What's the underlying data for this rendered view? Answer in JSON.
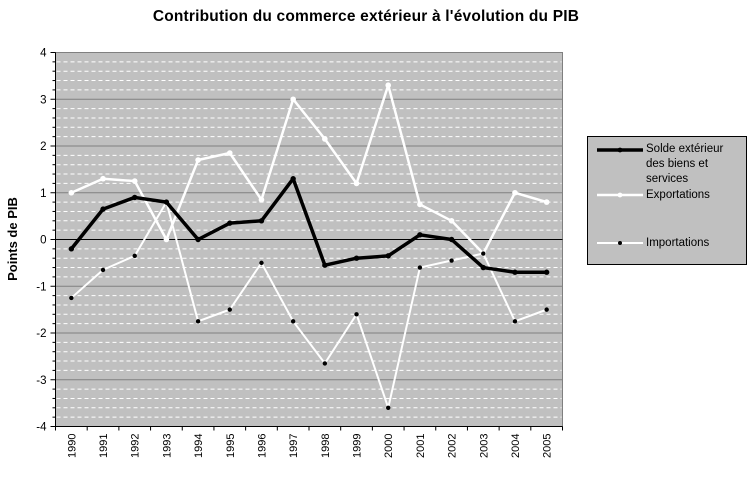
{
  "title": "Contribution du commerce extérieur à l'évolution du PIB",
  "y_axis": {
    "label": "Points de PIB",
    "tick_labels": [
      "4",
      "3",
      "2",
      "1",
      "0",
      "-1",
      "-2",
      "-3",
      "-4"
    ]
  },
  "colors": {
    "background": "#ffffff",
    "plot_background": "#c0c0c0",
    "major_gridline": "#808080",
    "minor_gridline": "#ffffff",
    "axis": "#000000",
    "text": "#000000",
    "legend_background": "#c0c0c0",
    "legend_border": "#000000"
  },
  "chart_data": {
    "type": "line",
    "title": "Contribution du commerce extérieur à l'évolution du PIB",
    "xlabel": "",
    "ylabel": "Points de PIB",
    "ylim": [
      -4,
      4
    ],
    "y_major_step": 1,
    "y_minor_step": 0.2,
    "grid": "major horizontal solid gray, minor horizontal dashed white",
    "legend_position": "right",
    "categories": [
      "1990",
      "1991",
      "1992",
      "1993",
      "1994",
      "1995",
      "1996",
      "1997",
      "1998",
      "1999",
      "2000",
      "2001",
      "2002",
      "2003",
      "2004",
      "2005"
    ],
    "series": [
      {
        "name": "Solde extérieur des biens et services",
        "color": "#000000",
        "marker_color": "#000000",
        "values": [
          -0.2,
          0.65,
          0.9,
          0.8,
          0.0,
          0.35,
          0.4,
          1.3,
          -0.55,
          -0.4,
          -0.35,
          0.1,
          0.0,
          -0.6,
          -0.7,
          -0.7
        ]
      },
      {
        "name": "Exportations",
        "color": "#ffffff",
        "marker_color": "#ffffff",
        "values": [
          1.0,
          1.3,
          1.25,
          0.0,
          1.7,
          1.85,
          0.85,
          3.0,
          2.15,
          1.2,
          3.3,
          0.75,
          0.4,
          -0.3,
          1.0,
          0.8
        ]
      },
      {
        "name": "Importations",
        "color": "#ffffff",
        "marker_color": "#000000",
        "values": [
          -1.25,
          -0.65,
          -0.35,
          0.8,
          -1.75,
          -1.5,
          -0.5,
          -1.75,
          -2.65,
          -1.6,
          -3.6,
          -0.6,
          -0.45,
          -0.3,
          -1.75,
          -1.5
        ]
      }
    ]
  }
}
